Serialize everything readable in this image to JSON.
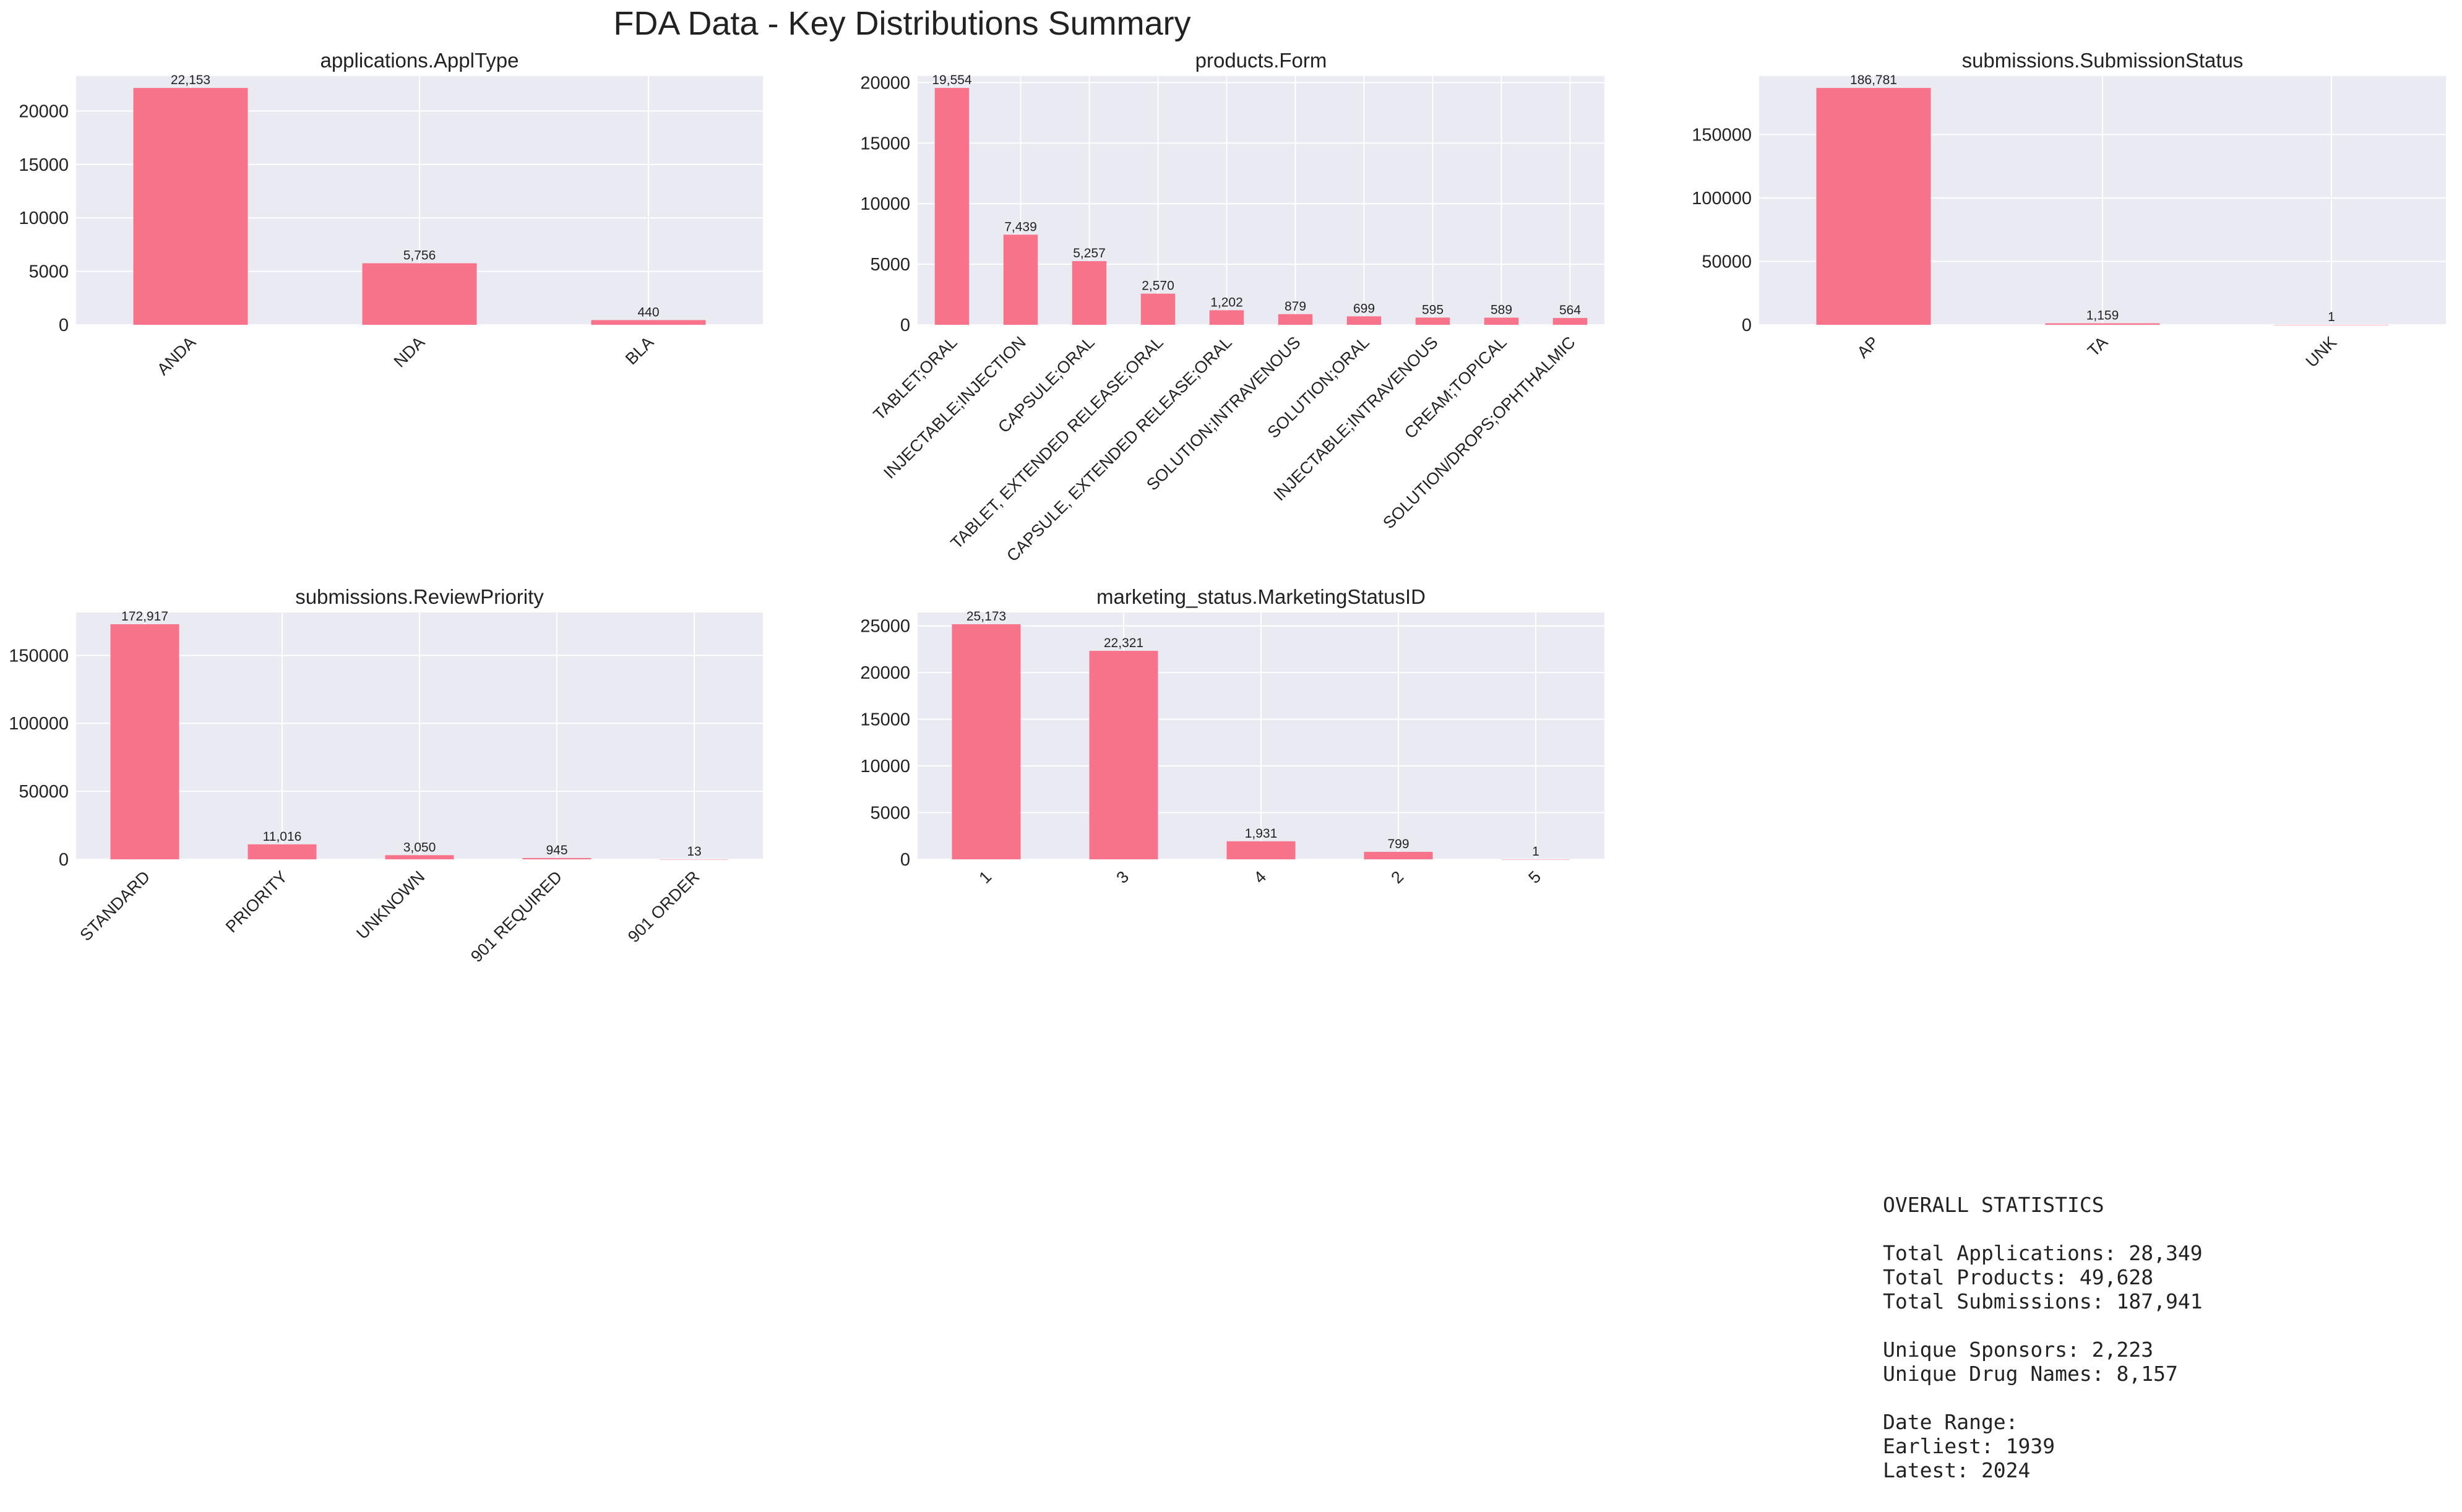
{
  "title": "FDA Data - Key Distributions Summary",
  "colors": {
    "bar": "#f7738a",
    "plot_bg": "#eaeaf2",
    "grid": "#ffffff",
    "text": "#222222"
  },
  "chart_data": [
    {
      "type": "bar",
      "title": "applications.ApplType",
      "categories": [
        "ANDA",
        "NDA",
        "BLA"
      ],
      "values": [
        22153,
        5756,
        440
      ],
      "value_labels": [
        "22,153",
        "5,756",
        "440"
      ],
      "ylim": [
        0,
        23260
      ],
      "yticks": [
        0,
        5000,
        10000,
        15000,
        20000
      ],
      "grid": true
    },
    {
      "type": "bar",
      "title": "products.Form",
      "categories": [
        "TABLET;ORAL",
        "INJECTABLE;INJECTION",
        "CAPSULE;ORAL",
        "TABLET, EXTENDED RELEASE;ORAL",
        "CAPSULE, EXTENDED RELEASE;ORAL",
        "SOLUTION;INTRAVENOUS",
        "SOLUTION;ORAL",
        "INJECTABLE;INTRAVENOUS",
        "CREAM;TOPICAL",
        "SOLUTION/DROPS;OPHTHALMIC"
      ],
      "values": [
        19554,
        7439,
        5257,
        2570,
        1202,
        879,
        699,
        595,
        589,
        564
      ],
      "value_labels": [
        "19,554",
        "7,439",
        "5,257",
        "2,570",
        "1,202",
        "879",
        "699",
        "595",
        "589",
        "564"
      ],
      "ylim": [
        0,
        20530
      ],
      "yticks": [
        0,
        5000,
        10000,
        15000,
        20000
      ],
      "grid": true
    },
    {
      "type": "bar",
      "title": "submissions.SubmissionStatus",
      "categories": [
        "AP",
        "TA",
        "UNK"
      ],
      "values": [
        186781,
        1159,
        1
      ],
      "value_labels": [
        "186,781",
        "1,159",
        "1"
      ],
      "ylim": [
        0,
        196120
      ],
      "yticks": [
        0,
        50000,
        100000,
        150000
      ],
      "grid": true
    },
    {
      "type": "bar",
      "title": "submissions.ReviewPriority",
      "categories": [
        "STANDARD",
        "PRIORITY",
        "UNKNOWN",
        "901 REQUIRED",
        "901 ORDER"
      ],
      "values": [
        172917,
        11016,
        3050,
        945,
        13
      ],
      "value_labels": [
        "172,917",
        "11,016",
        "3,050",
        "945",
        "13"
      ],
      "ylim": [
        0,
        181560
      ],
      "yticks": [
        0,
        50000,
        100000,
        150000
      ],
      "grid": true
    },
    {
      "type": "bar",
      "title": "marketing_status.MarketingStatusID",
      "categories": [
        "1",
        "3",
        "4",
        "2",
        "5"
      ],
      "values": [
        25173,
        22321,
        1931,
        799,
        1
      ],
      "value_labels": [
        "25,173",
        "22,321",
        "1,931",
        "799",
        "1"
      ],
      "ylim": [
        0,
        26430
      ],
      "yticks": [
        0,
        5000,
        10000,
        15000,
        20000,
        25000
      ],
      "grid": true
    }
  ],
  "stats": {
    "heading": "OVERALL STATISTICS",
    "total_applications": "Total Applications: 28,349",
    "total_products": "Total Products: 49,628",
    "total_submissions": "Total Submissions: 187,941",
    "unique_sponsors": "Unique Sponsors: 2,223",
    "unique_drug_names": "Unique Drug Names: 8,157",
    "date_range": "Date Range:",
    "earliest": "Earliest: 1939",
    "latest": "Latest: 2024"
  }
}
